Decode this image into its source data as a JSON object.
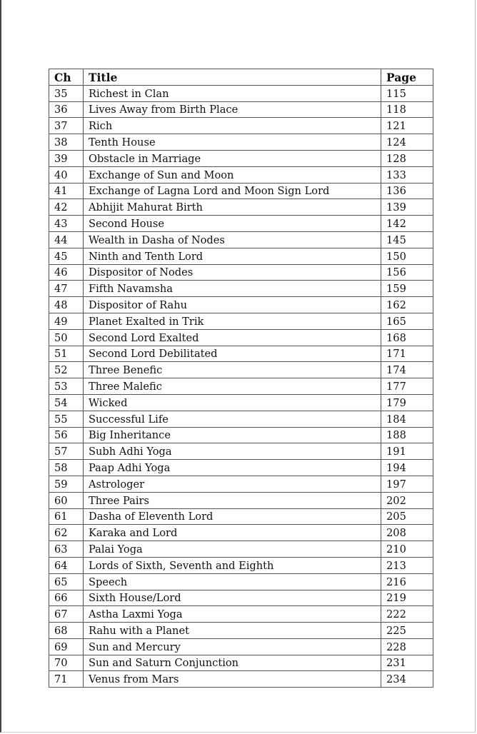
{
  "table": {
    "headers": [
      "Ch",
      "Title",
      "Page"
    ],
    "rows": [
      [
        "35",
        "Richest in Clan",
        "115"
      ],
      [
        "36",
        "Lives Away from Birth Place",
        "118"
      ],
      [
        "37",
        "Rich",
        "121"
      ],
      [
        "38",
        "Tenth House",
        "124"
      ],
      [
        "39",
        "Obstacle in Marriage",
        "128"
      ],
      [
        "40",
        "Exchange of Sun and Moon",
        "133"
      ],
      [
        "41",
        "Exchange of Lagna Lord and Moon Sign Lord",
        "136"
      ],
      [
        "42",
        "Abhijit Mahurat Birth",
        "139"
      ],
      [
        "43",
        "Second House",
        "142"
      ],
      [
        "44",
        "Wealth in Dasha of Nodes",
        "145"
      ],
      [
        "45",
        "Ninth and Tenth Lord",
        "150"
      ],
      [
        "46",
        "Dispositor of Nodes",
        "156"
      ],
      [
        "47",
        "Fifth Navamsha",
        "159"
      ],
      [
        "48",
        "Dispositor of Rahu",
        "162"
      ],
      [
        "49",
        "Planet Exalted in Trik",
        "165"
      ],
      [
        "50",
        "Second Lord Exalted",
        "168"
      ],
      [
        "51",
        "Second Lord Debilitated",
        "171"
      ],
      [
        "52",
        "Three Benefic",
        "174"
      ],
      [
        "53",
        "Three Malefic",
        "177"
      ],
      [
        "54",
        "Wicked",
        "179"
      ],
      [
        "55",
        "Successful Life",
        "184"
      ],
      [
        "56",
        "Big Inheritance",
        "188"
      ],
      [
        "57",
        "Subh Adhi Yoga",
        "191"
      ],
      [
        "58",
        "Paap Adhi Yoga",
        "194"
      ],
      [
        "59",
        "Astrologer",
        "197"
      ],
      [
        "60",
        "Three Pairs",
        "202"
      ],
      [
        "61",
        "Dasha of Eleventh Lord",
        "205"
      ],
      [
        "62",
        "Karaka and Lord",
        "208"
      ],
      [
        "63",
        "Palai Yoga",
        "210"
      ],
      [
        "64",
        "Lords of Sixth, Seventh and Eighth",
        "213"
      ],
      [
        "65",
        "Speech",
        "216"
      ],
      [
        "66",
        "Sixth House/Lord",
        "219"
      ],
      [
        "67",
        "Astha Laxmi Yoga",
        "222"
      ],
      [
        "68",
        "Rahu with a Planet",
        "225"
      ],
      [
        "69",
        "Sun and Mercury",
        "228"
      ],
      [
        "70",
        "Sun and Saturn Conjunction",
        "231"
      ],
      [
        "71",
        "Venus from Mars",
        "234"
      ]
    ]
  }
}
